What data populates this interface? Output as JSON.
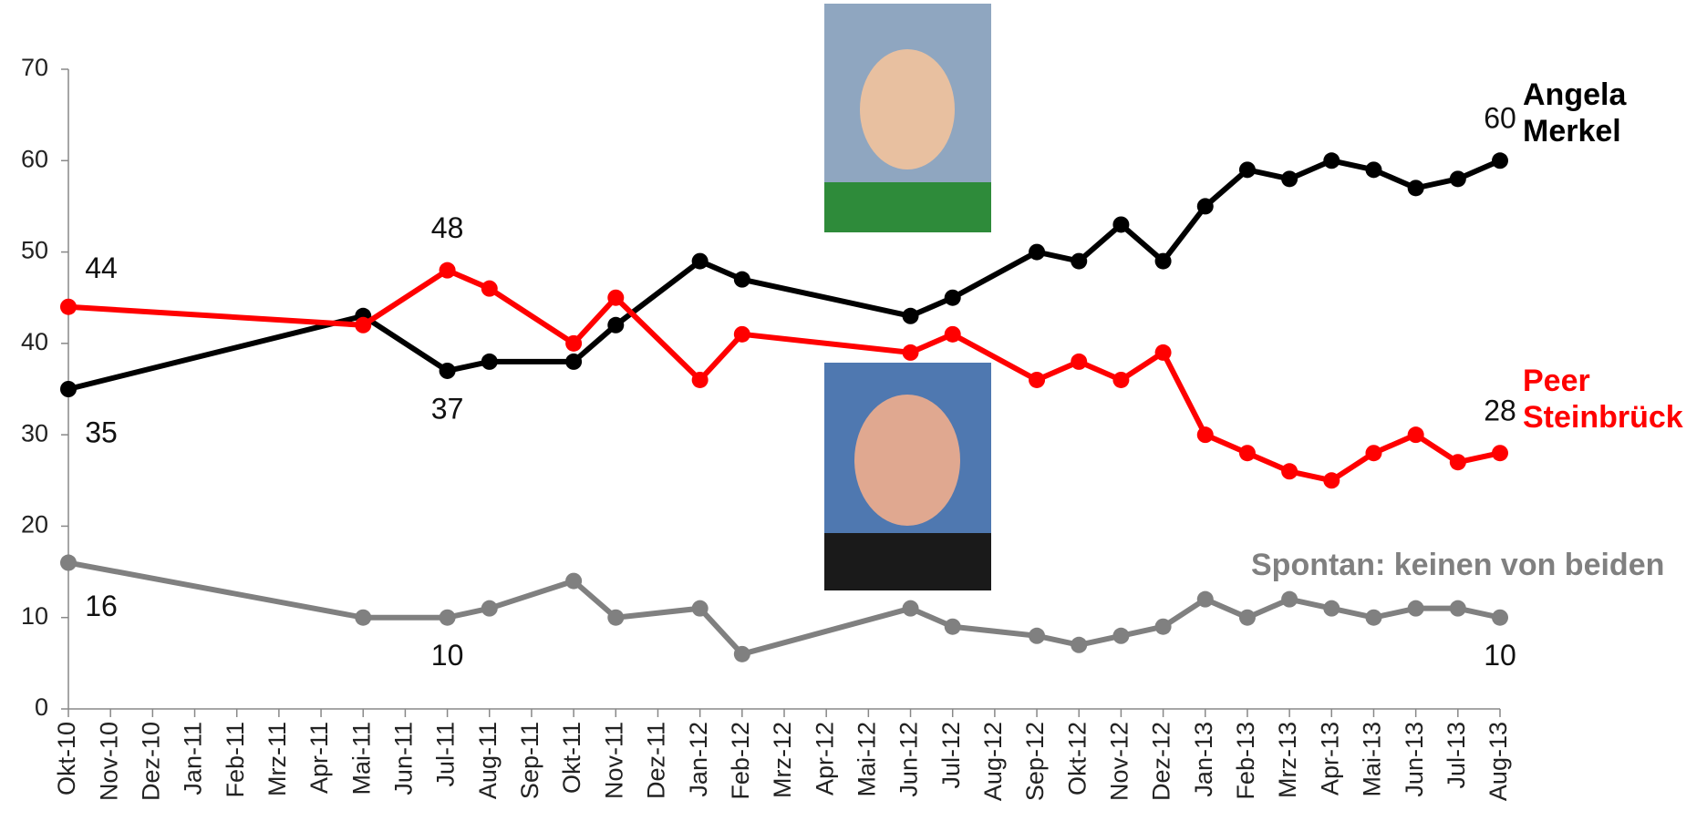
{
  "chart_data": {
    "type": "line",
    "categories": [
      "Okt-10",
      "Nov-10",
      "Dez-10",
      "Jan-11",
      "Feb-11",
      "Mrz-11",
      "Apr-11",
      "Mai-11",
      "Jun-11",
      "Jul-11",
      "Aug-11",
      "Sep-11",
      "Okt-11",
      "Nov-11",
      "Dez-11",
      "Jan-12",
      "Feb-12",
      "Mrz-12",
      "Apr-12",
      "Mai-12",
      "Jun-12",
      "Jul-12",
      "Aug-12",
      "Sep-12",
      "Okt-12",
      "Nov-12",
      "Dez-12",
      "Jan-13",
      "Feb-13",
      "Mrz-13",
      "Apr-13",
      "Mai-13",
      "Jun-13",
      "Jul-13",
      "Aug-13"
    ],
    "series": [
      {
        "name": "Angela Merkel",
        "color": "#000000",
        "values": [
          35,
          null,
          null,
          null,
          null,
          null,
          null,
          43,
          null,
          37,
          38,
          null,
          38,
          42,
          null,
          49,
          47,
          null,
          null,
          null,
          43,
          45,
          null,
          50,
          49,
          53,
          49,
          55,
          59,
          58,
          60,
          59,
          57,
          58,
          60
        ]
      },
      {
        "name": "Peer Steinbrück",
        "color": "#ff0000",
        "values": [
          44,
          null,
          null,
          null,
          null,
          null,
          null,
          42,
          null,
          48,
          46,
          null,
          40,
          45,
          null,
          36,
          41,
          null,
          null,
          null,
          39,
          41,
          null,
          36,
          38,
          36,
          39,
          30,
          28,
          26,
          25,
          28,
          30,
          27,
          28
        ]
      },
      {
        "name": "Spontan: keinen von beiden",
        "color": "#808080",
        "values": [
          16,
          null,
          null,
          null,
          null,
          null,
          null,
          10,
          null,
          10,
          11,
          null,
          14,
          10,
          null,
          11,
          6,
          null,
          null,
          null,
          11,
          9,
          null,
          8,
          7,
          8,
          9,
          12,
          10,
          12,
          11,
          10,
          11,
          11,
          10
        ]
      }
    ],
    "ylim": [
      0,
      70
    ],
    "yticks": [
      0,
      10,
      20,
      30,
      40,
      50,
      60,
      70
    ]
  }
}
